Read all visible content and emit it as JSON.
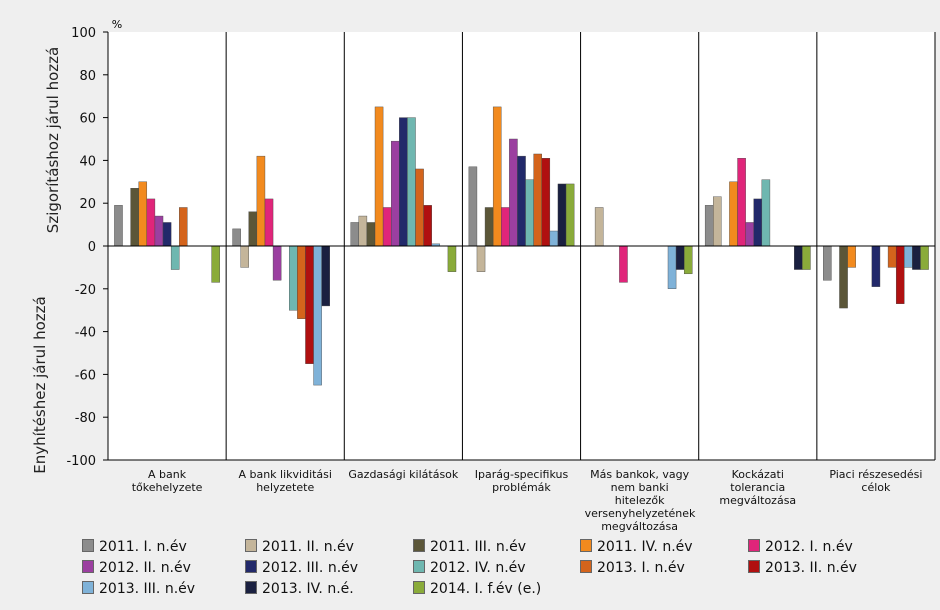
{
  "chart_data": {
    "type": "bar",
    "unit_label": "%",
    "y_label_upper": "Szigorításhoz járul hozzá",
    "y_label_lower": "Enyhítéshez járul hozzá",
    "categories": [
      "A bank tőkehelyzete",
      "A bank likviditási helyzetete",
      "Gazdasági kilátások",
      "Iparág-specifikus problémák",
      "Más bankok, vagy nem banki hitelezők versenyhelyzetének megváltozása",
      "Kockázati tolerancia megváltozása",
      "Piaci részesedési célok"
    ],
    "ylim": [
      -100,
      100
    ],
    "yticks": [
      -100,
      -80,
      -60,
      -40,
      -20,
      0,
      20,
      40,
      60,
      80,
      100
    ],
    "series": [
      {
        "name": "2011. I. n.év",
        "color": "#8c8c8c",
        "values": [
          19,
          8,
          11,
          37,
          0,
          19,
          -16
        ]
      },
      {
        "name": "2011. II. n.év",
        "color": "#c4b59a",
        "values": [
          0,
          -10,
          14,
          -12,
          18,
          23,
          0
        ]
      },
      {
        "name": "2011. III. n.év",
        "color": "#5b5638",
        "values": [
          27,
          16,
          11,
          18,
          0,
          0,
          -29
        ]
      },
      {
        "name": "2011. IV. n.év",
        "color": "#f28a1e",
        "values": [
          30,
          42,
          65,
          65,
          0,
          30,
          -10
        ]
      },
      {
        "name": "2012. I. n.év",
        "color": "#e0257a",
        "values": [
          22,
          22,
          18,
          18,
          -17,
          41,
          0
        ]
      },
      {
        "name": "2012. II. n.év",
        "color": "#9b3fa0",
        "values": [
          14,
          -16,
          49,
          50,
          0,
          11,
          0
        ]
      },
      {
        "name": "2012. III. n.év",
        "color": "#22296a",
        "values": [
          11,
          0,
          60,
          42,
          0,
          22,
          -19
        ]
      },
      {
        "name": "2012. IV. n.év",
        "color": "#6fb7b0",
        "values": [
          -11,
          -30,
          60,
          31,
          0,
          31,
          0
        ]
      },
      {
        "name": "2013. I. n.év",
        "color": "#d4641c",
        "values": [
          18,
          -34,
          36,
          43,
          0,
          0,
          -10
        ]
      },
      {
        "name": "2013. II. n.év",
        "color": "#b01010",
        "values": [
          0,
          -55,
          19,
          41,
          0,
          0,
          -27
        ]
      },
      {
        "name": "2013. III. n.év",
        "color": "#7fb2d8",
        "values": [
          0,
          -65,
          1,
          7,
          -20,
          0,
          -10
        ]
      },
      {
        "name": "2013. IV. n.é.",
        "color": "#1a2040",
        "values": [
          0,
          -28,
          0,
          29,
          -11,
          -11,
          -11
        ]
      },
      {
        "name": "2014. I. f.év (e.)",
        "color": "#8aab3a",
        "values": [
          -17,
          0,
          -12,
          29,
          -13,
          -11,
          -11
        ]
      }
    ]
  }
}
